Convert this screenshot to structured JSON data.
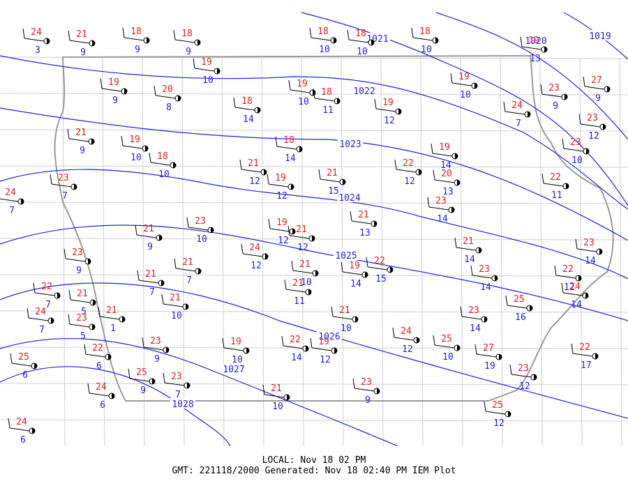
{
  "footer": {
    "local": "LOCAL: Nov 18 02 PM",
    "generated": "GMT: 221118/2000 Generated: Nov 18 02:40 PM IEM Plot"
  },
  "isobars": [
    {
      "label": "1019"
    },
    {
      "label": "1020"
    },
    {
      "label": "1021"
    },
    {
      "label": "1022"
    },
    {
      "label": "1023"
    },
    {
      "label": "1024"
    },
    {
      "label": "1025"
    },
    {
      "label": "1026"
    },
    {
      "label": "1027"
    },
    {
      "label": "1028"
    }
  ],
  "stations": [
    {
      "temp": "24",
      "dew": "3"
    },
    {
      "temp": "21",
      "dew": "9"
    },
    {
      "temp": "18",
      "dew": "9"
    },
    {
      "temp": "18",
      "dew": "9"
    },
    {
      "temp": "19",
      "dew": "10"
    },
    {
      "temp": "18",
      "dew": "10"
    },
    {
      "temp": "18",
      "dew": "10"
    },
    {
      "temp": "18",
      "dew": "10"
    },
    {
      "temp": "19",
      "dew": "13"
    },
    {
      "temp": "27",
      "dew": "9"
    },
    {
      "temp": "19",
      "dew": "9"
    },
    {
      "temp": "20",
      "dew": "8"
    },
    {
      "temp": "19",
      "dew": "10"
    },
    {
      "temp": "18",
      "dew": "11"
    },
    {
      "temp": "18",
      "dew": "14"
    },
    {
      "temp": "19",
      "dew": "12"
    },
    {
      "temp": "19",
      "dew": "10"
    },
    {
      "temp": "23",
      "dew": "9"
    },
    {
      "temp": "24",
      "dew": "7"
    },
    {
      "temp": "23",
      "dew": "12"
    },
    {
      "temp": "21",
      "dew": "9"
    },
    {
      "temp": "19",
      "dew": "10"
    },
    {
      "temp": "18",
      "dew": "10"
    },
    {
      "temp": "18",
      "dew": "14"
    },
    {
      "temp": "23",
      "dew": "10"
    },
    {
      "temp": "19",
      "dew": "14"
    },
    {
      "temp": "22",
      "dew": "12"
    },
    {
      "temp": "20",
      "dew": "13"
    },
    {
      "temp": "21",
      "dew": "12"
    },
    {
      "temp": "19",
      "dew": "12"
    },
    {
      "temp": "21",
      "dew": "15"
    },
    {
      "temp": "22",
      "dew": "11"
    },
    {
      "temp": "23",
      "dew": "7"
    },
    {
      "temp": "24",
      "dew": "7"
    },
    {
      "temp": "23",
      "dew": "14"
    },
    {
      "temp": "21",
      "dew": "13"
    },
    {
      "temp": "23",
      "dew": "10"
    },
    {
      "temp": "21",
      "dew": "9"
    },
    {
      "temp": "19",
      "dew": "12"
    },
    {
      "temp": "21",
      "dew": "12"
    },
    {
      "temp": "24",
      "dew": "12"
    },
    {
      "temp": "23",
      "dew": "14"
    },
    {
      "temp": "21",
      "dew": "14"
    },
    {
      "temp": "23",
      "dew": "9"
    },
    {
      "temp": "21",
      "dew": "7"
    },
    {
      "temp": "21",
      "dew": "10"
    },
    {
      "temp": "19",
      "dew": "14"
    },
    {
      "temp": "22",
      "dew": "15"
    },
    {
      "temp": "23",
      "dew": "14"
    },
    {
      "temp": "22",
      "dew": "12"
    },
    {
      "temp": "24",
      "dew": "14"
    },
    {
      "temp": "21",
      "dew": "7"
    },
    {
      "temp": "21",
      "dew": "11"
    },
    {
      "temp": "22",
      "dew": "7"
    },
    {
      "temp": "21",
      "dew": "5"
    },
    {
      "temp": "21",
      "dew": "10"
    },
    {
      "temp": "24",
      "dew": "7"
    },
    {
      "temp": "21",
      "dew": "1"
    },
    {
      "temp": "23",
      "dew": "5"
    },
    {
      "temp": "25",
      "dew": "16"
    },
    {
      "temp": "23",
      "dew": "14"
    },
    {
      "temp": "21",
      "dew": "10"
    },
    {
      "temp": "24",
      "dew": "12"
    },
    {
      "temp": "25",
      "dew": "10"
    },
    {
      "temp": "27",
      "dew": "19"
    },
    {
      "temp": "22",
      "dew": "17"
    },
    {
      "temp": "23",
      "dew": "9"
    },
    {
      "temp": "19",
      "dew": "10"
    },
    {
      "temp": "22",
      "dew": "14"
    },
    {
      "temp": "19",
      "dew": "12"
    },
    {
      "temp": "22",
      "dew": "6"
    },
    {
      "temp": "25",
      "dew": "6"
    },
    {
      "temp": "25",
      "dew": "9"
    },
    {
      "temp": "23",
      "dew": "7"
    },
    {
      "temp": "23",
      "dew": "12"
    },
    {
      "temp": "23",
      "dew": "9"
    },
    {
      "temp": "24",
      "dew": "6"
    },
    {
      "temp": "21",
      "dew": "10"
    },
    {
      "temp": "25",
      "dew": "12"
    },
    {
      "temp": "24",
      "dew": "6"
    }
  ]
}
